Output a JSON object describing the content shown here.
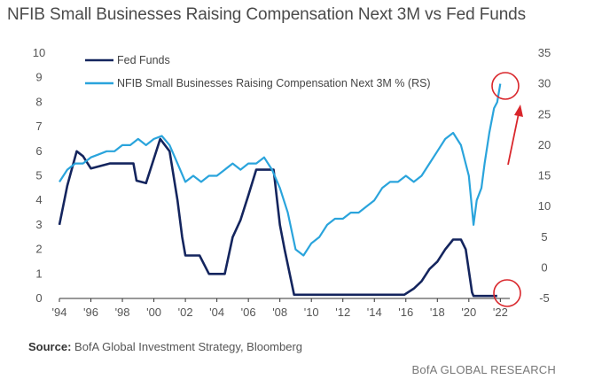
{
  "header": {
    "title": "NFIB Small Businesses Raising Compensation Next 3M vs Fed Funds"
  },
  "source": {
    "label": "Source:",
    "text": "BofA Global Investment Strategy, Bloomberg"
  },
  "footer": {
    "brand": "BofA GLOBAL RESEARCH"
  },
  "colors": {
    "fed": "#14255e",
    "nfib": "#2aa4dc",
    "highlight": "#d9262b",
    "axis": "#555555"
  },
  "chart_data": {
    "type": "line",
    "title": "NFIB Small Businesses Raising Compensation Next 3M vs Fed Funds",
    "x_ticks": [
      "'94",
      "'96",
      "'98",
      "'00",
      "'02",
      "'04",
      "'06",
      "'08",
      "'10",
      "'12",
      "'14",
      "'16",
      "'18",
      "'20",
      "'22"
    ],
    "xlim": [
      1994,
      2022.6
    ],
    "y_left": {
      "lim": [
        0,
        10
      ],
      "ticks": [
        "0",
        "1",
        "2",
        "3",
        "4",
        "5",
        "6",
        "7",
        "8",
        "9",
        "10"
      ]
    },
    "y_right": {
      "lim": [
        -5,
        35
      ],
      "ticks": [
        "-5",
        "0",
        "5",
        "10",
        "15",
        "20",
        "25",
        "30",
        "35"
      ]
    },
    "legend": {
      "position": "top-left"
    },
    "series": [
      {
        "name": "Fed Funds",
        "axis": "left",
        "x": [
          1994.0,
          1994.5,
          1995.1,
          1995.5,
          1996.0,
          1997.2,
          1998.7,
          1998.9,
          1999.5,
          2000.4,
          2001.0,
          2001.5,
          2001.8,
          2002.0,
          2002.9,
          2003.5,
          2004.5,
          2005.0,
          2005.5,
          2006.0,
          2006.5,
          2007.6,
          2008.0,
          2008.3,
          2008.9,
          2015.9,
          2016.5,
          2017.0,
          2017.5,
          2018.0,
          2018.5,
          2019.0,
          2019.5,
          2019.8,
          2020.2,
          2020.3,
          2021.0,
          2021.8
        ],
        "y": [
          3.0,
          4.6,
          6.0,
          5.8,
          5.3,
          5.5,
          5.5,
          4.8,
          4.7,
          6.5,
          6.0,
          4.0,
          2.5,
          1.75,
          1.75,
          1.0,
          1.0,
          2.5,
          3.2,
          4.2,
          5.25,
          5.25,
          3.0,
          2.0,
          0.15,
          0.15,
          0.4,
          0.7,
          1.2,
          1.5,
          2.0,
          2.4,
          2.4,
          2.0,
          0.25,
          0.1,
          0.1,
          0.1
        ]
      },
      {
        "name": "NFIB Small Businesses Raising Compensation Next 3M % (RS)",
        "axis": "right",
        "x": [
          1994.0,
          1994.5,
          1995.0,
          1995.5,
          1996.0,
          1996.5,
          1997.0,
          1997.5,
          1998.0,
          1998.5,
          1999.0,
          1999.5,
          2000.0,
          2000.5,
          2001.0,
          2001.5,
          2002.0,
          2002.5,
          2003.0,
          2003.5,
          2004.0,
          2004.5,
          2005.0,
          2005.5,
          2006.0,
          2006.5,
          2007.0,
          2007.5,
          2008.0,
          2008.5,
          2009.0,
          2009.5,
          2010.0,
          2010.5,
          2011.0,
          2011.5,
          2012.0,
          2012.5,
          2013.0,
          2013.5,
          2014.0,
          2014.5,
          2015.0,
          2015.5,
          2016.0,
          2016.5,
          2017.0,
          2017.5,
          2018.0,
          2018.5,
          2019.0,
          2019.5,
          2020.0,
          2020.3,
          2020.5,
          2020.8,
          2021.0,
          2021.3,
          2021.6,
          2021.8,
          2022.0
        ],
        "y": [
          14,
          16,
          17,
          17,
          18,
          18.5,
          19,
          19,
          20,
          20,
          21,
          20,
          21,
          21.5,
          20,
          17,
          14,
          15,
          14,
          15,
          15,
          16,
          17,
          16,
          17,
          17,
          18,
          16,
          13,
          9,
          3,
          2,
          4,
          5,
          7,
          8,
          8,
          9,
          9,
          10,
          11,
          13,
          14,
          14,
          15,
          14,
          15,
          17,
          19,
          21,
          22,
          20,
          15,
          7,
          11,
          13,
          17,
          22,
          26,
          27,
          30
        ]
      }
    ]
  }
}
